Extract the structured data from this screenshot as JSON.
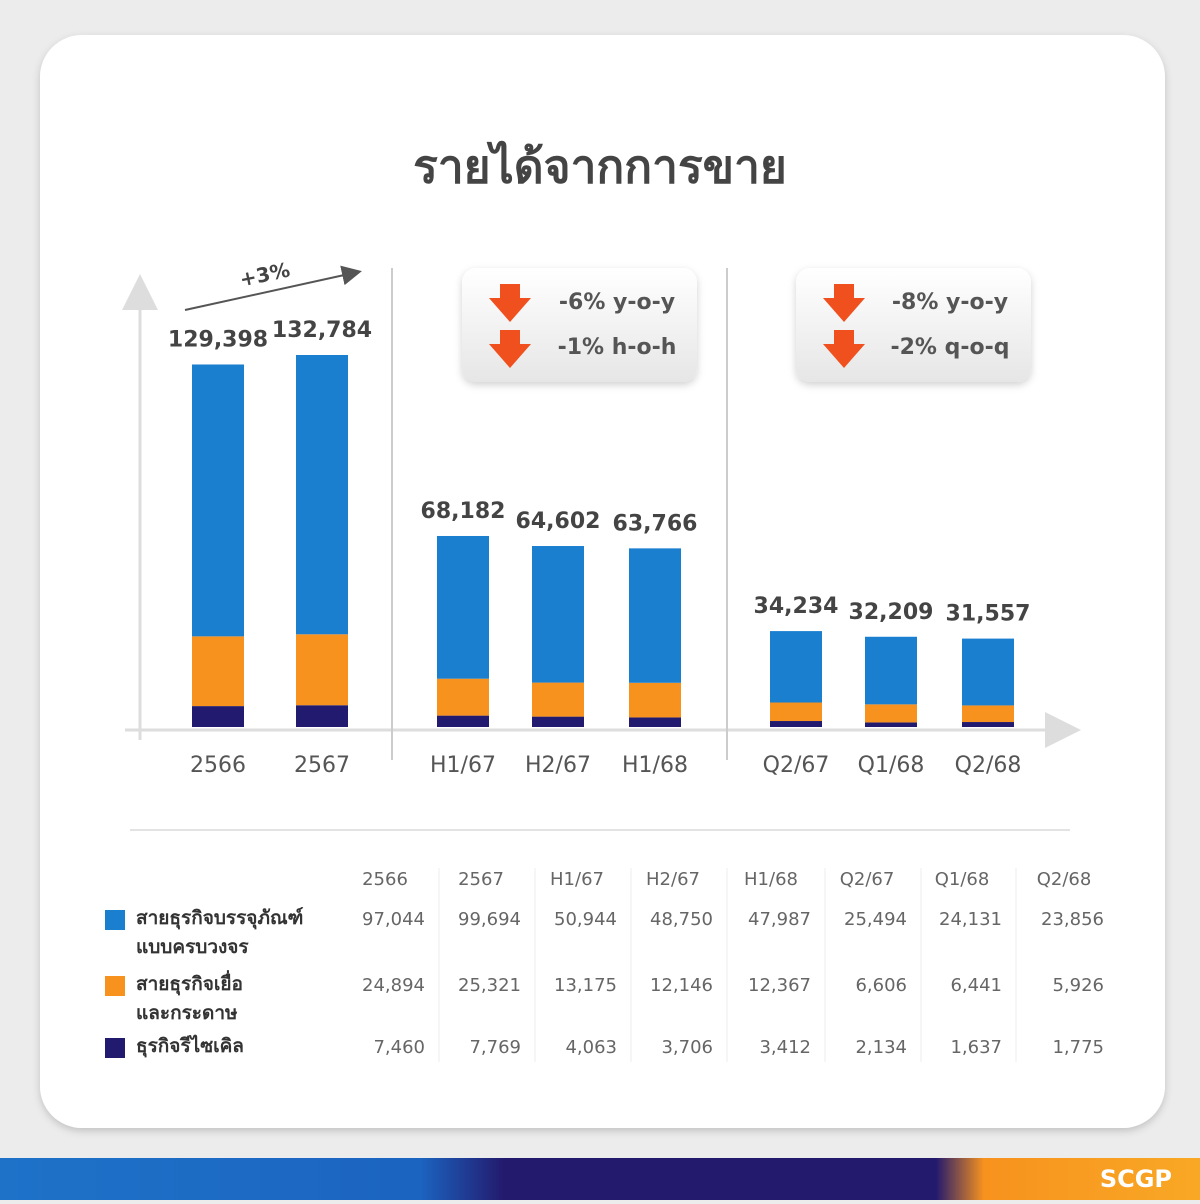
{
  "chart_data": {
    "type": "stacked-bar",
    "title": "รายได้จากการขาย",
    "categories": [
      "2566",
      "2567",
      "H1/67",
      "H2/67",
      "H1/68",
      "Q2/67",
      "Q1/68",
      "Q2/68"
    ],
    "series": [
      {
        "name": "สายธุรกิจบรรจุภัณฑ์\nแบบครบวงจร",
        "color": "#1b7fd0",
        "values": [
          97044,
          99694,
          50944,
          48750,
          47987,
          25494,
          24131,
          23856
        ],
        "value_labels": [
          "97,044",
          "99,694",
          "50,944",
          "48,750",
          "47,987",
          "25,494",
          "24,131",
          "23,856"
        ]
      },
      {
        "name": "สายธุรกิจเยื่อ\nและกระดาษ",
        "color": "#f7921e",
        "values": [
          24894,
          25321,
          13175,
          12146,
          12367,
          6606,
          6441,
          5926
        ],
        "value_labels": [
          "24,894",
          "25,321",
          "13,175",
          "12,146",
          "12,367",
          "6,606",
          "6,441",
          "5,926"
        ]
      },
      {
        "name": "ธุรกิจรีไซเคิล",
        "color": "#211a6e",
        "values": [
          7460,
          7769,
          4063,
          3706,
          3412,
          2134,
          1637,
          1775
        ],
        "value_labels": [
          "7,460",
          "7,769",
          "4,063",
          "3,706",
          "3,412",
          "2,134",
          "1,637",
          "1,775"
        ]
      }
    ],
    "totals": [
      129398,
      132784,
      68182,
      64602,
      63766,
      34234,
      32209,
      31557
    ],
    "total_labels": [
      "129,398",
      "132,784",
      "68,182",
      "64,602",
      "63,766",
      "34,234",
      "32,209",
      "31,557"
    ],
    "annotations": [
      "+3%",
      "-6% y-o-y",
      "-1% h-o-h",
      "-8% y-o-y",
      "-2% q-o-q"
    ]
  },
  "logo": "SCGP"
}
